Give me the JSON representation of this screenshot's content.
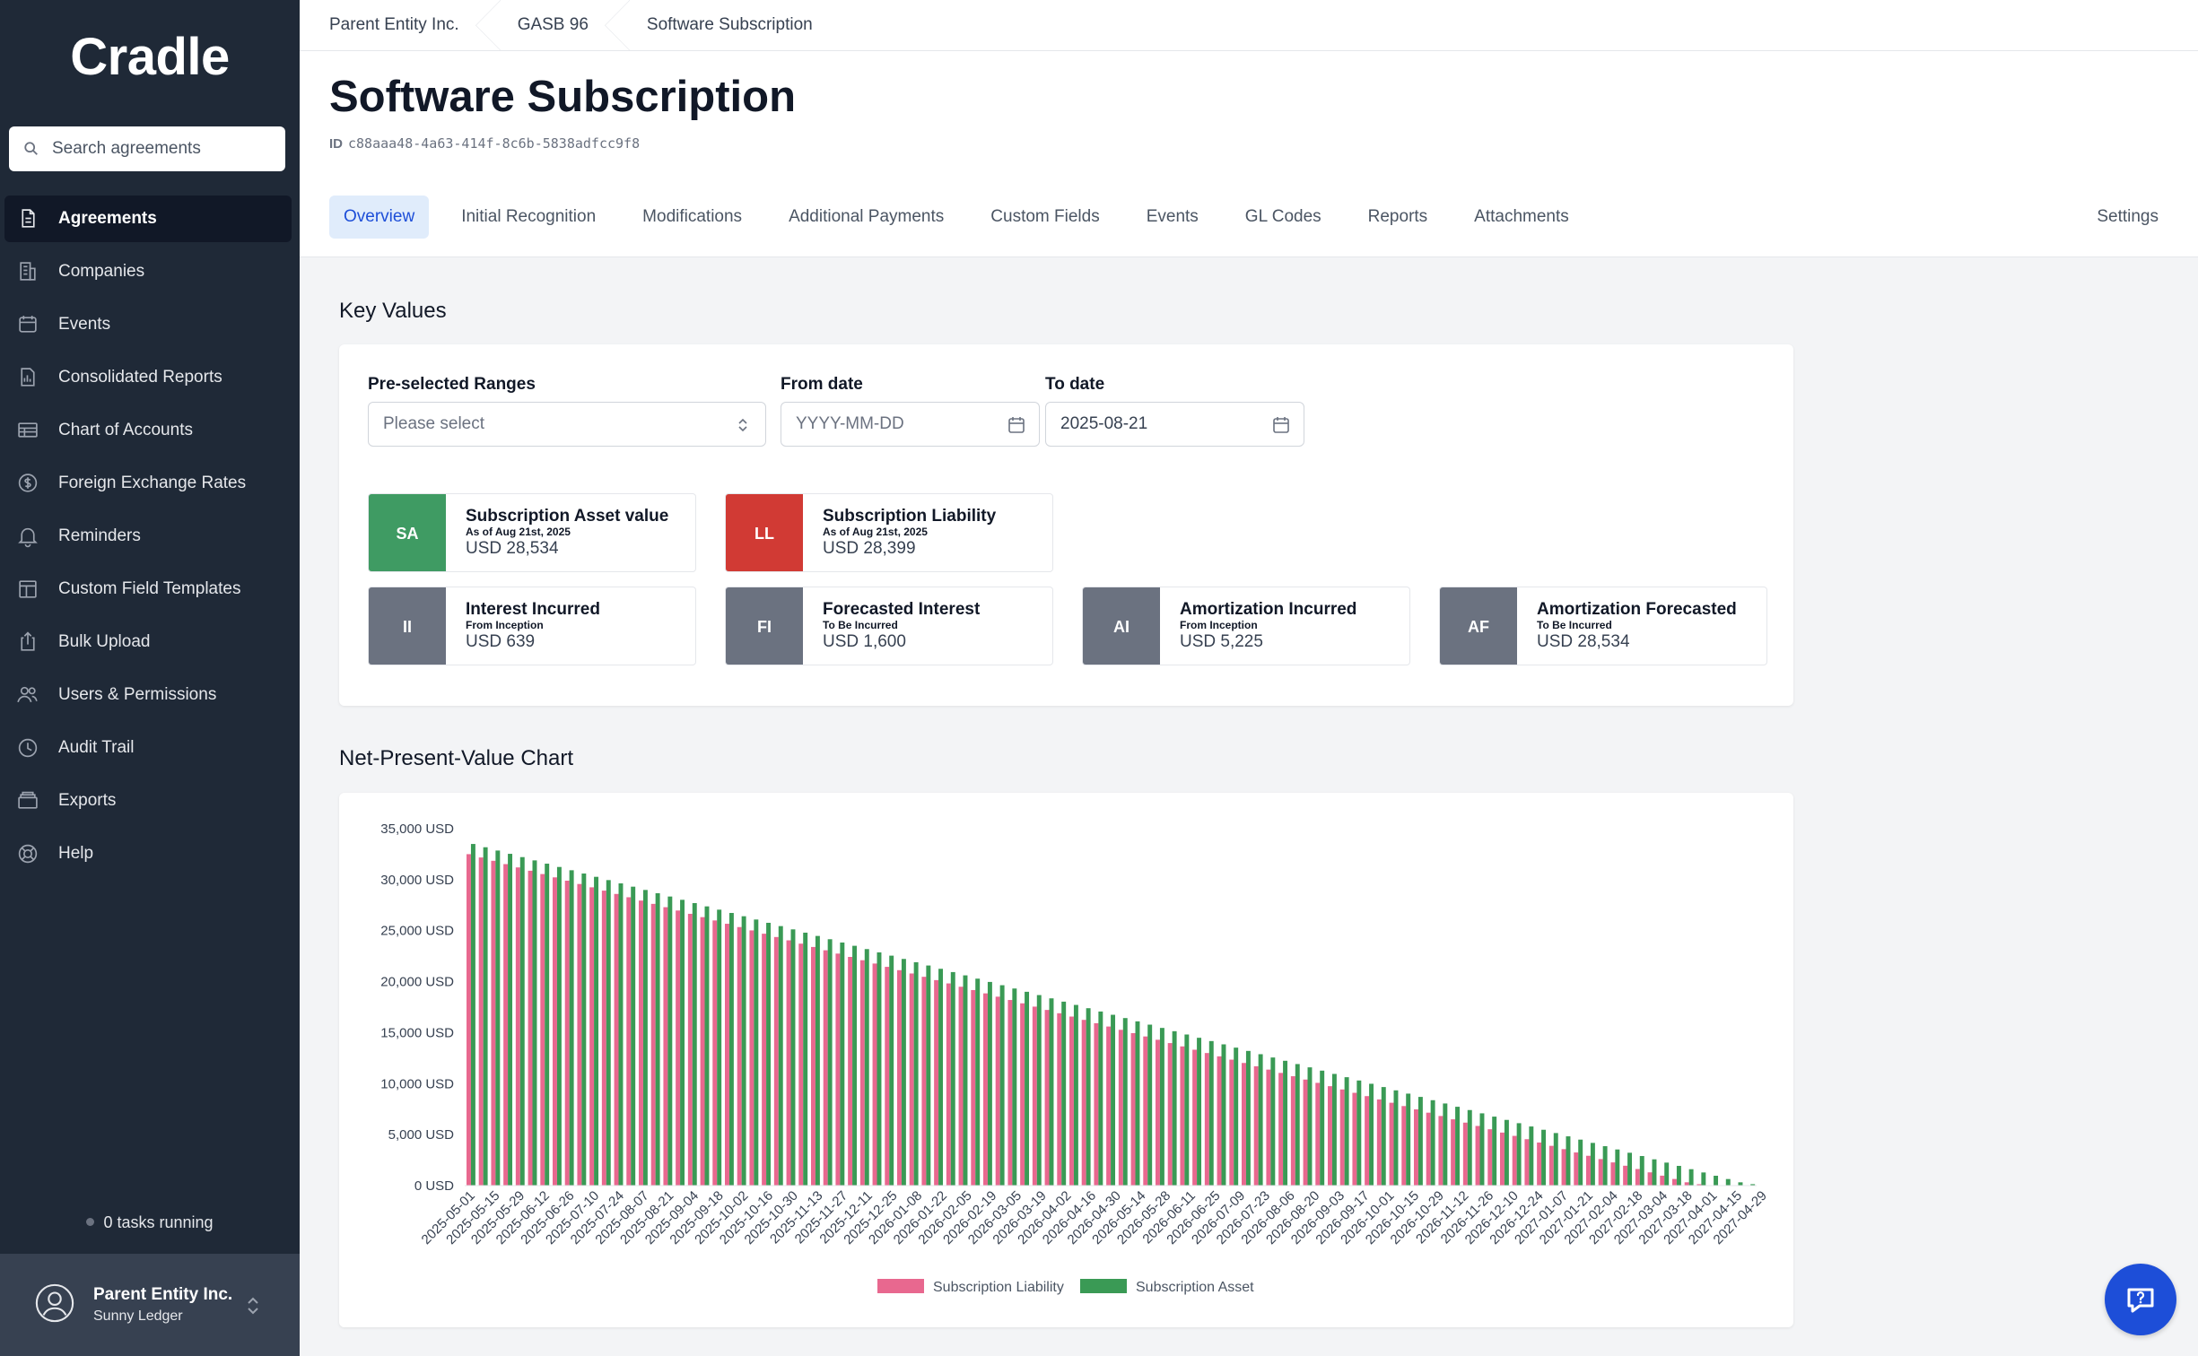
{
  "app": {
    "logo": "Cradle",
    "search_placeholder": "Search agreements"
  },
  "sidebar": {
    "items": [
      {
        "label": "Agreements",
        "icon": "document-icon",
        "active": true
      },
      {
        "label": "Companies",
        "icon": "building-icon"
      },
      {
        "label": "Events",
        "icon": "calendar-icon"
      },
      {
        "label": "Consolidated Reports",
        "icon": "report-icon"
      },
      {
        "label": "Chart of Accounts",
        "icon": "table-icon"
      },
      {
        "label": "Foreign Exchange Rates",
        "icon": "dollar-circle-icon"
      },
      {
        "label": "Reminders",
        "icon": "bell-icon"
      },
      {
        "label": "Custom Field Templates",
        "icon": "template-icon"
      },
      {
        "label": "Bulk Upload",
        "icon": "upload-icon"
      },
      {
        "label": "Users & Permissions",
        "icon": "users-icon"
      },
      {
        "label": "Audit Trail",
        "icon": "clock-icon"
      },
      {
        "label": "Exports",
        "icon": "archive-icon"
      },
      {
        "label": "Help",
        "icon": "lifebuoy-icon"
      }
    ],
    "tasks_running": "0 tasks running",
    "account": {
      "name": "Parent Entity Inc.",
      "sub": "Sunny Ledger"
    }
  },
  "breadcrumb": [
    "Parent Entity Inc.",
    "GASB 96",
    "Software Subscription"
  ],
  "page": {
    "title": "Software Subscription",
    "id_label": "ID",
    "id_value": "c88aaa48-4a63-414f-8c6b-5838adfcc9f8"
  },
  "tabs": [
    "Overview",
    "Initial Recognition",
    "Modifications",
    "Additional Payments",
    "Custom Fields",
    "Events",
    "GL Codes",
    "Reports",
    "Attachments"
  ],
  "tab_settings": "Settings",
  "key_values": {
    "title": "Key Values",
    "range_label": "Pre-selected Ranges",
    "range_placeholder": "Please select",
    "from_label": "From date",
    "from_placeholder": "YYYY-MM-DD",
    "to_label": "To date",
    "to_value": "2025-08-21",
    "stats": [
      {
        "badge": "SA",
        "color": "#3f9b63",
        "title": "Subscription Asset value",
        "sub": "As of Aug 21st, 2025",
        "value": "USD 28,534"
      },
      {
        "badge": "LL",
        "color": "#d13a34",
        "title": "Subscription Liability",
        "sub": "As of Aug 21st, 2025",
        "value": "USD 28,399"
      },
      {
        "badge": "II",
        "color": "#6b7280",
        "title": "Interest Incurred",
        "sub": "From Inception",
        "value": "USD 639"
      },
      {
        "badge": "FI",
        "color": "#6b7280",
        "title": "Forecasted Interest",
        "sub": "To Be Incurred",
        "value": "USD 1,600"
      },
      {
        "badge": "AI",
        "color": "#6b7280",
        "title": "Amortization Incurred",
        "sub": "From Inception",
        "value": "USD 5,225"
      },
      {
        "badge": "AF",
        "color": "#6b7280",
        "title": "Amortization Forecasted",
        "sub": "To Be Incurred",
        "value": "USD 28,534"
      }
    ]
  },
  "npv": {
    "title": "Net-Present-Value Chart"
  },
  "chart_data": {
    "type": "bar",
    "title": "",
    "xlabel": "",
    "ylabel": "",
    "ylim": [
      0,
      35000
    ],
    "y_ticks": [
      "0 USD",
      "5,000 USD",
      "10,000 USD",
      "15,000 USD",
      "20,000 USD",
      "25,000 USD",
      "30,000 USD",
      "35,000 USD"
    ],
    "x_start": "2025-05-01",
    "x_end": "2027-04-29",
    "x_tick_labels": [
      "2025-05-01",
      "2025-05-15",
      "2025-05-29",
      "2025-06-12",
      "2025-06-26",
      "2025-07-10",
      "2025-07-24",
      "2025-08-07",
      "2025-08-21",
      "2025-09-04",
      "2025-09-18",
      "2025-10-02",
      "2025-10-16",
      "2025-10-30",
      "2025-11-13",
      "2025-11-27",
      "2025-12-11",
      "2025-12-25",
      "2026-01-08",
      "2026-01-22",
      "2026-02-05",
      "2026-02-19",
      "2026-03-05",
      "2026-03-19",
      "2026-04-02",
      "2026-04-16",
      "2026-04-30",
      "2026-05-14",
      "2026-05-28",
      "2026-06-11",
      "2026-06-25",
      "2026-07-09",
      "2026-07-23",
      "2026-08-06",
      "2026-08-20",
      "2026-09-03",
      "2026-09-17",
      "2026-10-01",
      "2026-10-15",
      "2026-10-29",
      "2026-11-12",
      "2026-11-26",
      "2026-12-10",
      "2026-12-24",
      "2027-01-07",
      "2027-01-21",
      "2027-02-04",
      "2027-02-18",
      "2027-03-04",
      "2027-03-18",
      "2027-04-01",
      "2027-04-15",
      "2027-04-29"
    ],
    "series": [
      {
        "name": "Subscription Liability",
        "color": "#e8688f",
        "start_value": 32500,
        "end_value": 0,
        "end_date": "2027-04-01"
      },
      {
        "name": "Subscription Asset",
        "color": "#3a9a55",
        "start_value": 33500,
        "end_value": 0,
        "end_date": "2027-04-29"
      }
    ],
    "legend": "bottom"
  }
}
